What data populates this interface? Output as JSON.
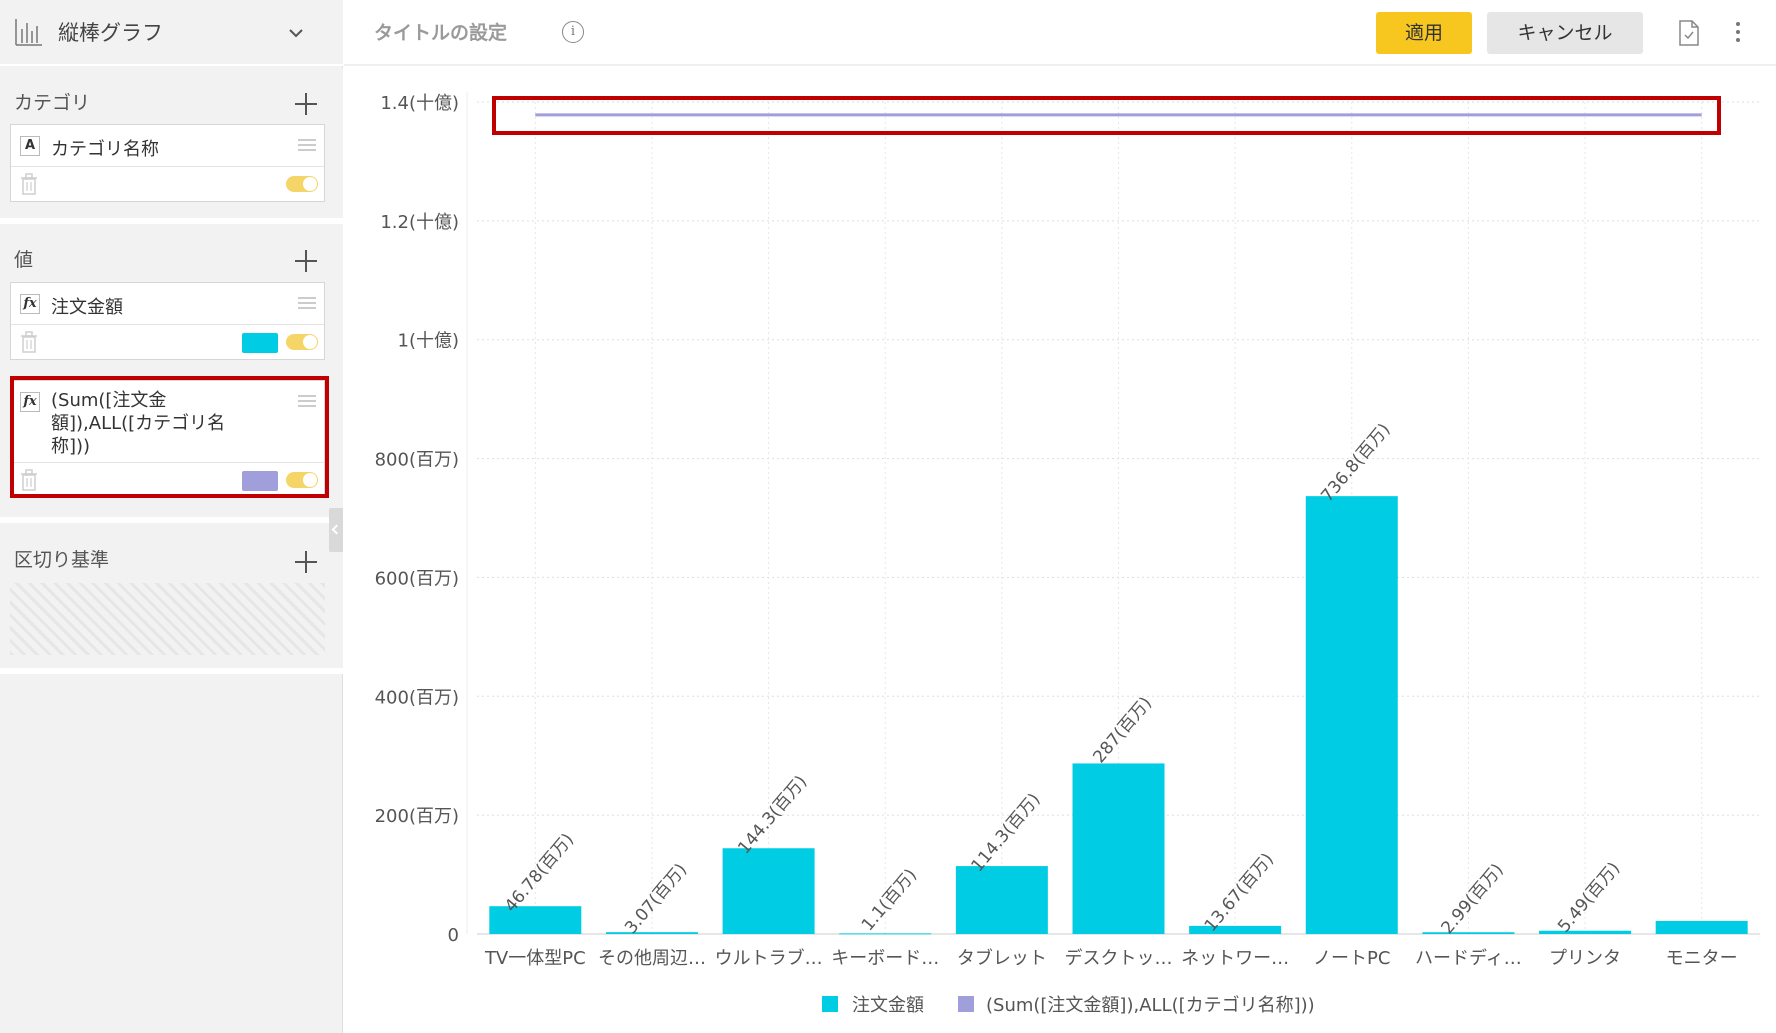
{
  "left_panel": {
    "chart_type_label": "縦棒グラフ",
    "category_section": {
      "label": "カテゴリ",
      "fields": [
        {
          "kind": "A",
          "name": "カテゴリ名称"
        }
      ]
    },
    "value_section": {
      "label": "値",
      "fields": [
        {
          "kind": "fx",
          "name": "注文金額",
          "color": "#00cde3"
        },
        {
          "kind": "fx",
          "name_lines": [
            "(Sum([注文金",
            "額]),ALL([カテゴリ名",
            "称]))"
          ],
          "color": "#a09edb"
        }
      ]
    },
    "split_section": {
      "label": "区切り基準"
    }
  },
  "toolbar": {
    "title_placeholder": "タイトルの設定",
    "info_icon": "i",
    "apply_label": "適用",
    "cancel_label": "キャンセル"
  },
  "colors": {
    "bar": "#00cde3",
    "line": "#a09edb",
    "highlight": "#c00000",
    "apply": "#f7c71f"
  },
  "chart_data": {
    "type": "bar",
    "categories": [
      "TV一体型PC",
      "その他周辺…",
      "ウルトラブ…",
      "キーボード…",
      "タブレット",
      "デスクトッ…",
      "ネットワー…",
      "ノートPC",
      "ハードディ…",
      "プリンタ",
      "モニター"
    ],
    "series": [
      {
        "name": "注文金額",
        "type": "bar",
        "values": [
          46.78,
          3.07,
          144.3,
          1.1,
          114.3,
          287,
          13.67,
          736.8,
          2.99,
          5.49,
          22
        ],
        "labels": [
          "46.78(百万)",
          "3.07(百万)",
          "144.3(百万)",
          "1.1(百万)",
          "114.3(百万)",
          "287(百万)",
          "13.67(百万)",
          "736.8(百万)",
          "2.99(百万)",
          "5.49(百万)",
          ""
        ]
      },
      {
        "name": "(Sum([注文金額]),ALL([カテゴリ名称]))",
        "type": "line",
        "values": [
          1378.3,
          1378.3,
          1378.3,
          1378.3,
          1378.3,
          1378.3,
          1378.3,
          1378.3,
          1378.3,
          1378.3,
          1378.3
        ]
      }
    ],
    "y_ticks": [
      0,
      200,
      400,
      600,
      800,
      1000,
      1200,
      1400
    ],
    "y_tick_labels": [
      "0",
      "200(百万)",
      "400(百万)",
      "600(百万)",
      "800(百万)",
      "1(十億)",
      "1.2(十億)",
      "1.4(十億)"
    ],
    "ylim": [
      0,
      1400
    ],
    "grid": true,
    "legend_position": "bottom-center"
  }
}
